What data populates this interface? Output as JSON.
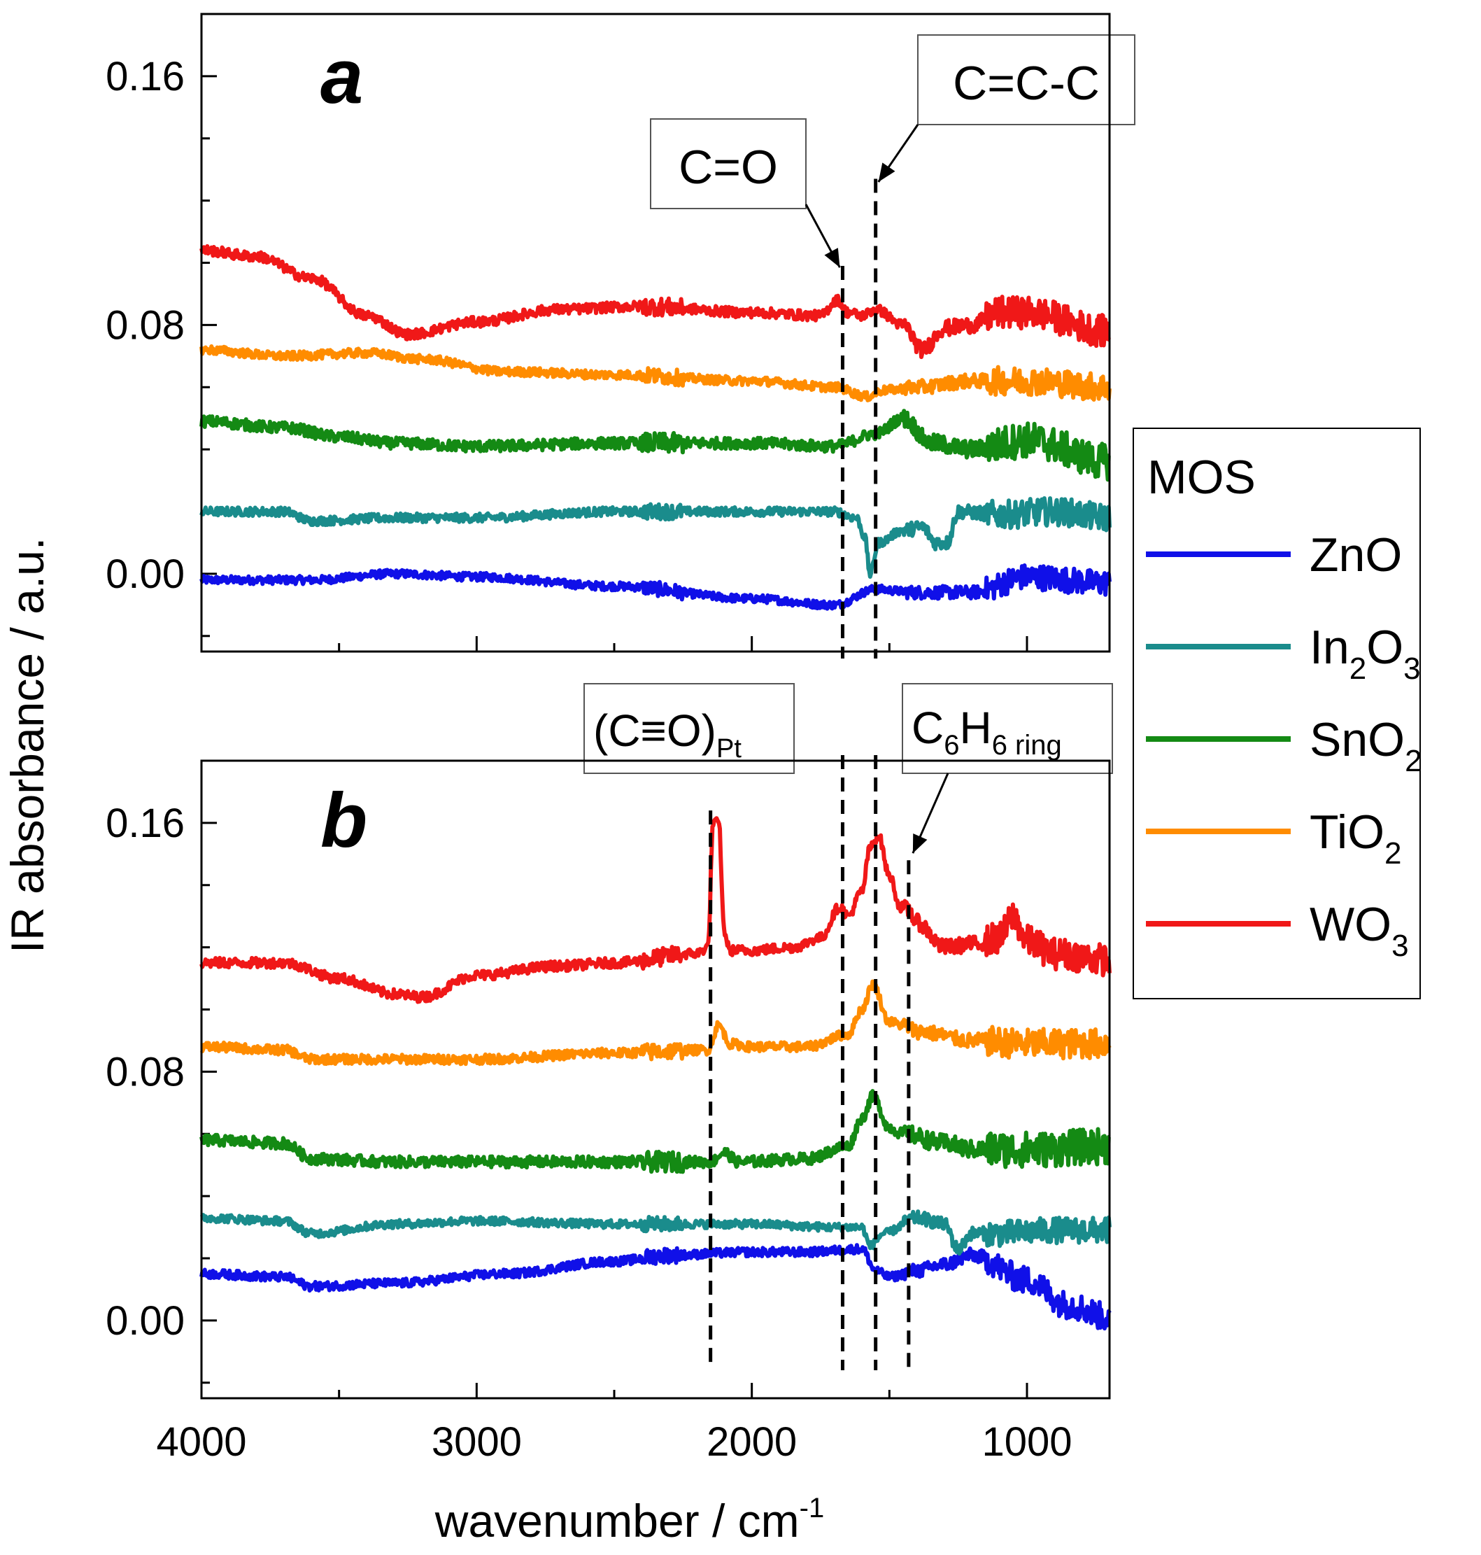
{
  "chart_data": {
    "type": "line",
    "ylabel": "IR absorbance / a.u.",
    "xlabel_main": "wavenumber / cm",
    "xlabel_sup": "-1",
    "xlim": [
      4000,
      700
    ],
    "ylim": [
      -0.025,
      0.18
    ],
    "xticks": [
      4000,
      3000,
      2000,
      1000
    ],
    "xtick_labels": [
      "4000",
      "3000",
      "2000",
      "1000"
    ],
    "yticks": [
      0.0,
      0.08,
      0.16
    ],
    "ytick_labels": [
      "0.00",
      "0.08",
      "0.16"
    ],
    "legend": {
      "title": "MOS",
      "placement": "right",
      "entries": [
        {
          "name": "ZnO",
          "base": "ZnO",
          "sub": ""
        },
        {
          "name": "In2O3",
          "base": "In",
          "sub": "2",
          "base2": "O",
          "sub2": "3"
        },
        {
          "name": "SnO2",
          "base": "SnO",
          "sub": "2"
        },
        {
          "name": "TiO2",
          "base": "TiO",
          "sub": "2"
        },
        {
          "name": "WO3",
          "base": "WO",
          "sub": "3"
        }
      ]
    },
    "colors": {
      "ZnO": "#1010e8",
      "In2O3": "#1a8c8c",
      "SnO2": "#148a14",
      "TiO2": "#ff8c00",
      "WO3": "#f01818"
    },
    "panels": [
      {
        "label": "a",
        "annotations": [
          {
            "text": "C=O",
            "x": 1670,
            "line_top": 0.099
          },
          {
            "text": "C=C-C",
            "x": 1550,
            "line_top": 0.127
          }
        ],
        "series": [
          {
            "name": "ZnO",
            "noise": 0.0013,
            "anchors": [
              [
                4000,
                -0.002
              ],
              [
                3700,
                -0.002
              ],
              [
                3600,
                -0.002
              ],
              [
                3300,
                0.0
              ],
              [
                3000,
                -0.001
              ],
              [
                2500,
                -0.004
              ],
              [
                2000,
                -0.008
              ],
              [
                1700,
                -0.01
              ],
              [
                1550,
                -0.005
              ],
              [
                1400,
                -0.006
              ],
              [
                1200,
                -0.006
              ],
              [
                1000,
                -0.001
              ],
              [
                700,
                -0.003
              ]
            ]
          },
          {
            "name": "In2O3",
            "noise": 0.0014,
            "anchors": [
              [
                4000,
                0.02
              ],
              [
                3700,
                0.02
              ],
              [
                3600,
                0.017
              ],
              [
                3300,
                0.018
              ],
              [
                3000,
                0.018
              ],
              [
                2500,
                0.02
              ],
              [
                2000,
                0.02
              ],
              [
                1700,
                0.02
              ],
              [
                1620,
                0.018
              ],
              [
                1590,
                0.012
              ],
              [
                1570,
                0.0
              ],
              [
                1540,
                0.01
              ],
              [
                1450,
                0.014
              ],
              [
                1380,
                0.015
              ],
              [
                1330,
                0.01
              ],
              [
                1290,
                0.01
              ],
              [
                1250,
                0.02
              ],
              [
                1100,
                0.019
              ],
              [
                900,
                0.02
              ],
              [
                700,
                0.018
              ]
            ]
          },
          {
            "name": "SnO2",
            "noise": 0.0018,
            "anchors": [
              [
                4000,
                0.049
              ],
              [
                3700,
                0.047
              ],
              [
                3500,
                0.044
              ],
              [
                3300,
                0.042
              ],
              [
                3000,
                0.041
              ],
              [
                2500,
                0.042
              ],
              [
                2000,
                0.042
              ],
              [
                1700,
                0.041
              ],
              [
                1550,
                0.045
              ],
              [
                1450,
                0.05
              ],
              [
                1350,
                0.042
              ],
              [
                1200,
                0.04
              ],
              [
                1000,
                0.043
              ],
              [
                700,
                0.036
              ]
            ]
          },
          {
            "name": "TiO2",
            "noise": 0.0014,
            "anchors": [
              [
                4000,
                0.072
              ],
              [
                3700,
                0.07
              ],
              [
                3400,
                0.071
              ],
              [
                3200,
                0.069
              ],
              [
                2900,
                0.065
              ],
              [
                2500,
                0.064
              ],
              [
                2000,
                0.062
              ],
              [
                1700,
                0.06
              ],
              [
                1580,
                0.057
              ],
              [
                1520,
                0.059
              ],
              [
                1400,
                0.06
              ],
              [
                1200,
                0.062
              ],
              [
                1000,
                0.062
              ],
              [
                700,
                0.06
              ]
            ]
          },
          {
            "name": "WO3",
            "noise": 0.0016,
            "anchors": [
              [
                4000,
                0.104
              ],
              [
                3800,
                0.102
              ],
              [
                3600,
                0.095
              ],
              [
                3400,
                0.083
              ],
              [
                3250,
                0.077
              ],
              [
                3000,
                0.081
              ],
              [
                2700,
                0.085
              ],
              [
                2400,
                0.086
              ],
              [
                2000,
                0.084
              ],
              [
                1750,
                0.083
              ],
              [
                1690,
                0.088
              ],
              [
                1650,
                0.084
              ],
              [
                1600,
                0.083
              ],
              [
                1550,
                0.085
              ],
              [
                1450,
                0.08
              ],
              [
                1380,
                0.072
              ],
              [
                1300,
                0.079
              ],
              [
                1200,
                0.08
              ],
              [
                1100,
                0.084
              ],
              [
                1000,
                0.084
              ],
              [
                700,
                0.078
              ]
            ]
          }
        ]
      },
      {
        "label": "b",
        "annotations": [
          {
            "text": "(C≡O)",
            "sub": "Pt",
            "x": 2150,
            "line_top": 0.164
          },
          {
            "text": "C",
            "sub": "6",
            "text2": "H",
            "sub2": "6 ring",
            "x": 1430,
            "line_top": 0.148
          }
        ],
        "series": [
          {
            "name": "ZnO",
            "noise": 0.0014,
            "anchors": [
              [
                4000,
                0.015
              ],
              [
                3700,
                0.014
              ],
              [
                3600,
                0.011
              ],
              [
                3300,
                0.012
              ],
              [
                2900,
                0.015
              ],
              [
                2500,
                0.019
              ],
              [
                2300,
                0.021
              ],
              [
                2000,
                0.022
              ],
              [
                1800,
                0.022
              ],
              [
                1600,
                0.023
              ],
              [
                1550,
                0.016
              ],
              [
                1500,
                0.014
              ],
              [
                1400,
                0.016
              ],
              [
                1300,
                0.018
              ],
              [
                1200,
                0.021
              ],
              [
                1000,
                0.013
              ],
              [
                850,
                0.005
              ],
              [
                700,
                0.001
              ]
            ]
          },
          {
            "name": "In2O3",
            "noise": 0.0013,
            "anchors": [
              [
                4000,
                0.033
              ],
              [
                3700,
                0.032
              ],
              [
                3600,
                0.028
              ],
              [
                3300,
                0.031
              ],
              [
                3000,
                0.032
              ],
              [
                2500,
                0.031
              ],
              [
                2000,
                0.031
              ],
              [
                1700,
                0.03
              ],
              [
                1600,
                0.03
              ],
              [
                1570,
                0.024
              ],
              [
                1520,
                0.028
              ],
              [
                1400,
                0.033
              ],
              [
                1300,
                0.031
              ],
              [
                1250,
                0.023
              ],
              [
                1200,
                0.028
              ],
              [
                1100,
                0.028
              ],
              [
                900,
                0.029
              ],
              [
                700,
                0.029
              ]
            ]
          },
          {
            "name": "SnO2",
            "noise": 0.0018,
            "anchors": [
              [
                4000,
                0.058
              ],
              [
                3700,
                0.057
              ],
              [
                3600,
                0.052
              ],
              [
                3300,
                0.051
              ],
              [
                3000,
                0.051
              ],
              [
                2500,
                0.051
              ],
              [
                2150,
                0.051
              ],
              [
                2100,
                0.054
              ],
              [
                2050,
                0.051
              ],
              [
                1800,
                0.052
              ],
              [
                1650,
                0.056
              ],
              [
                1600,
                0.065
              ],
              [
                1560,
                0.072
              ],
              [
                1500,
                0.062
              ],
              [
                1450,
                0.06
              ],
              [
                1300,
                0.057
              ],
              [
                1200,
                0.055
              ],
              [
                1000,
                0.055
              ],
              [
                700,
                0.056
              ]
            ]
          },
          {
            "name": "TiO2",
            "noise": 0.0015,
            "anchors": [
              [
                4000,
                0.088
              ],
              [
                3700,
                0.087
              ],
              [
                3600,
                0.084
              ],
              [
                3300,
                0.084
              ],
              [
                3000,
                0.084
              ],
              [
                2500,
                0.086
              ],
              [
                2160,
                0.087
              ],
              [
                2120,
                0.095
              ],
              [
                2080,
                0.089
              ],
              [
                2000,
                0.088
              ],
              [
                1800,
                0.088
              ],
              [
                1650,
                0.092
              ],
              [
                1600,
                0.1
              ],
              [
                1560,
                0.108
              ],
              [
                1500,
                0.096
              ],
              [
                1450,
                0.095
              ],
              [
                1400,
                0.093
              ],
              [
                1200,
                0.09
              ],
              [
                1000,
                0.089
              ],
              [
                700,
                0.089
              ]
            ]
          },
          {
            "name": "WO3",
            "noise": 0.0016,
            "anchors": [
              [
                4000,
                0.115
              ],
              [
                3700,
                0.115
              ],
              [
                3500,
                0.11
              ],
              [
                3300,
                0.105
              ],
              [
                3200,
                0.104
              ],
              [
                3000,
                0.111
              ],
              [
                2700,
                0.114
              ],
              [
                2500,
                0.115
              ],
              [
                2200,
                0.118
              ],
              [
                2160,
                0.12
              ],
              [
                2140,
                0.16
              ],
              [
                2120,
                0.16
              ],
              [
                2100,
                0.125
              ],
              [
                2080,
                0.119
              ],
              [
                2000,
                0.119
              ],
              [
                1850,
                0.12
              ],
              [
                1750,
                0.123
              ],
              [
                1680,
                0.133
              ],
              [
                1650,
                0.13
              ],
              [
                1600,
                0.138
              ],
              [
                1570,
                0.152
              ],
              [
                1540,
                0.156
              ],
              [
                1500,
                0.143
              ],
              [
                1460,
                0.133
              ],
              [
                1430,
                0.132
              ],
              [
                1400,
                0.128
              ],
              [
                1300,
                0.12
              ],
              [
                1200,
                0.121
              ],
              [
                1100,
                0.123
              ],
              [
                1050,
                0.13
              ],
              [
                1000,
                0.122
              ],
              [
                900,
                0.118
              ],
              [
                700,
                0.116
              ]
            ]
          }
        ]
      }
    ]
  }
}
